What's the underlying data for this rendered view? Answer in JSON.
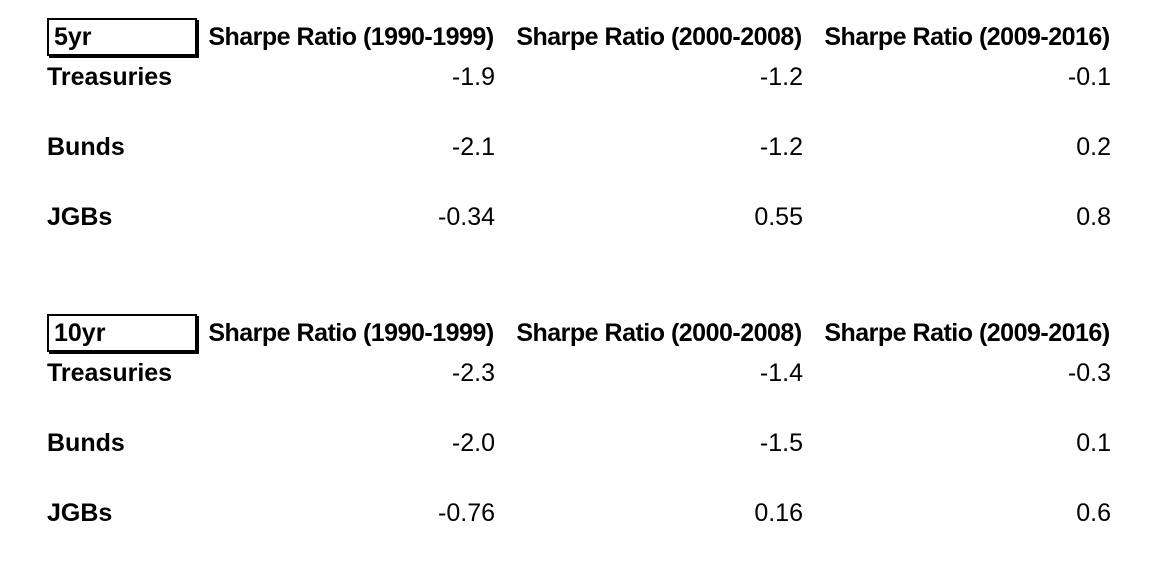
{
  "page": {
    "background_color": "#ffffff",
    "text_color": "#000000",
    "box_border_color": "#000000"
  },
  "tables": [
    {
      "label": "5yr",
      "columns": [
        "Sharpe Ratio (1990-1999)",
        "Sharpe Ratio (2000-2008)",
        "Sharpe Ratio (2009-2016)"
      ],
      "rows": [
        {
          "label": "Treasuries",
          "values": [
            "-1.9",
            "-1.2",
            "-0.1"
          ]
        },
        {
          "label": "Bunds",
          "values": [
            "-2.1",
            "-1.2",
            "0.2"
          ]
        },
        {
          "label": "JGBs",
          "values": [
            "-0.34",
            "0.55",
            "0.8"
          ]
        }
      ]
    },
    {
      "label": "10yr",
      "columns": [
        "Sharpe Ratio (1990-1999)",
        "Sharpe Ratio (2000-2008)",
        "Sharpe Ratio (2009-2016)"
      ],
      "rows": [
        {
          "label": "Treasuries",
          "values": [
            "-2.3",
            "-1.4",
            "-0.3"
          ]
        },
        {
          "label": "Bunds",
          "values": [
            "-2.0",
            "-1.5",
            "0.1"
          ]
        },
        {
          "label": "JGBs",
          "values": [
            "-0.76",
            "0.16",
            "0.6"
          ]
        }
      ]
    }
  ],
  "chart_data": [
    {
      "type": "table",
      "title": "5yr",
      "columns": [
        "Sharpe Ratio (1990-1999)",
        "Sharpe Ratio (2000-2008)",
        "Sharpe Ratio (2009-2016)"
      ],
      "row_labels": [
        "Treasuries",
        "Bunds",
        "JGBs"
      ],
      "series": [
        {
          "name": "Treasuries",
          "values": [
            -1.9,
            -1.2,
            -0.1
          ]
        },
        {
          "name": "Bunds",
          "values": [
            -2.1,
            -1.2,
            0.2
          ]
        },
        {
          "name": "JGBs",
          "values": [
            -0.34,
            0.55,
            0.8
          ]
        }
      ]
    },
    {
      "type": "table",
      "title": "10yr",
      "columns": [
        "Sharpe Ratio (1990-1999)",
        "Sharpe Ratio (2000-2008)",
        "Sharpe Ratio (2009-2016)"
      ],
      "row_labels": [
        "Treasuries",
        "Bunds",
        "JGBs"
      ],
      "series": [
        {
          "name": "Treasuries",
          "values": [
            -2.3,
            -1.4,
            -0.3
          ]
        },
        {
          "name": "Bunds",
          "values": [
            -2.0,
            -1.5,
            0.1
          ]
        },
        {
          "name": "JGBs",
          "values": [
            -0.76,
            0.16,
            0.6
          ]
        }
      ]
    }
  ]
}
